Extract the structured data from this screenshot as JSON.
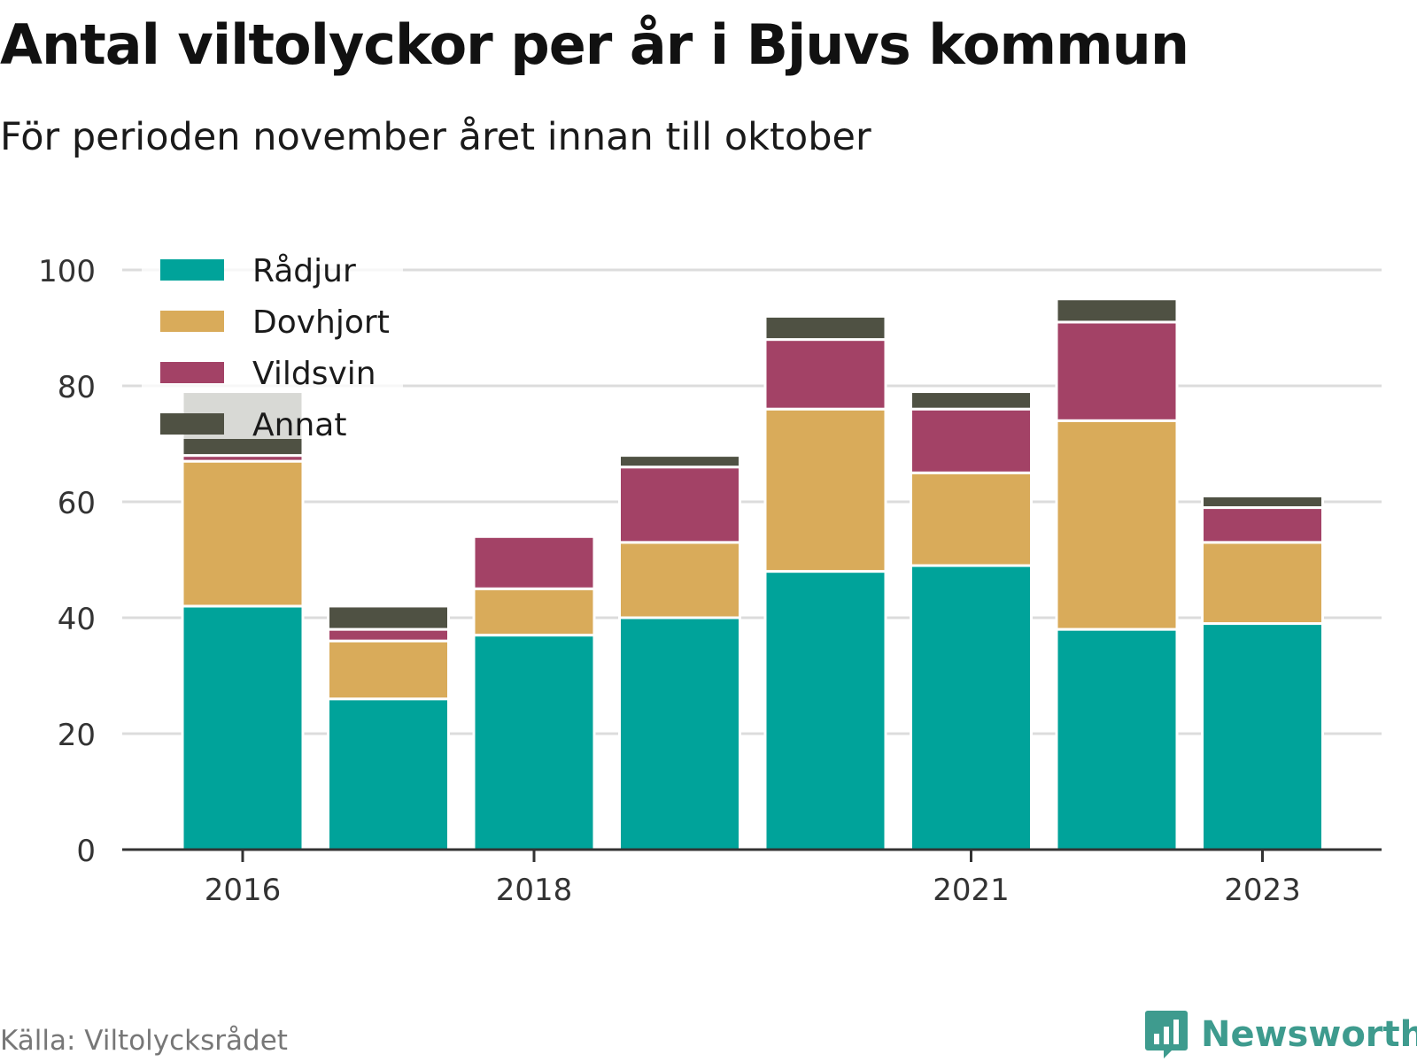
{
  "header": {
    "title": "Antal viltolyckor per år i Bjuvs kommun",
    "subtitle": "För perioden november året innan till oktober"
  },
  "footer": {
    "source": "Källa: Viltolycksrådet",
    "brand": "Newsworthy",
    "brand_icon": "bar-chart-speech-bubble-icon"
  },
  "chart_data": {
    "type": "bar",
    "stacked": true,
    "categories": [
      "2016",
      "2017",
      "2018",
      "2019",
      "2020",
      "2021",
      "2022",
      "2023"
    ],
    "x_tick_labels": [
      "2016",
      "2018",
      "2021",
      "2023"
    ],
    "y_ticks": [
      0,
      20,
      40,
      60,
      80,
      100
    ],
    "ylim": [
      0,
      100
    ],
    "grid": true,
    "legend_position": "top-left",
    "series": [
      {
        "name": "Rådjur",
        "color": "#00a39a",
        "values": [
          42,
          26,
          37,
          40,
          48,
          49,
          38,
          39
        ]
      },
      {
        "name": "Dovhjort",
        "color": "#d9ab5a",
        "values": [
          25,
          10,
          8,
          13,
          28,
          16,
          36,
          14
        ]
      },
      {
        "name": "Vildsvin",
        "color": "#a34266",
        "values": [
          1,
          2,
          9,
          13,
          12,
          11,
          17,
          6
        ]
      },
      {
        "name": "Annat",
        "color": "#4f5143",
        "values": [
          11,
          4,
          0,
          2,
          4,
          3,
          4,
          2
        ]
      }
    ]
  }
}
